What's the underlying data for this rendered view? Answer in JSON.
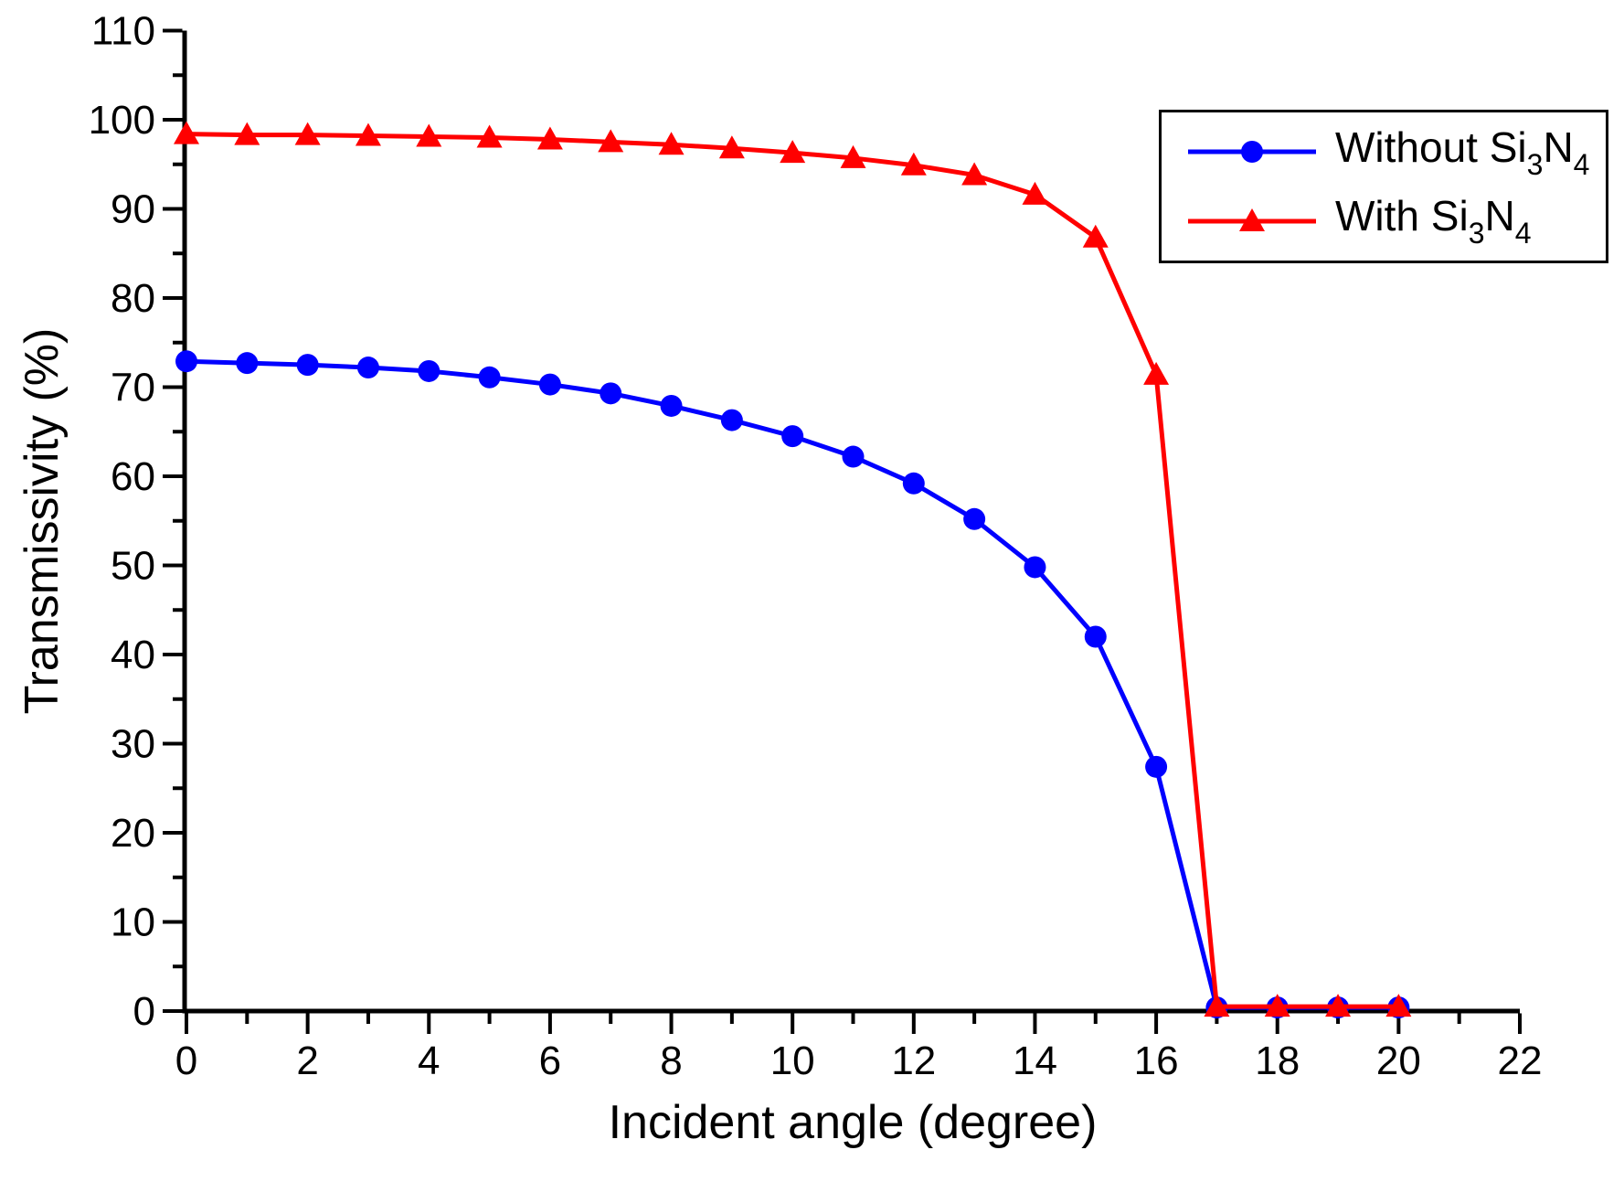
{
  "figure": {
    "background": "#ffffff"
  },
  "chart_data": {
    "type": "line",
    "title": "",
    "xlabel": "Incident angle (degree)",
    "ylabel": "Transmissivity (%)",
    "xlim": [
      0,
      22
    ],
    "ylim": [
      0,
      110
    ],
    "x_major_tick_step": 2,
    "x_minor_tick_step": 1,
    "y_major_tick_step": 10,
    "y_minor_tick_step": 5,
    "grid": false,
    "legend_position": "top-right",
    "axis_color": "#000000",
    "x": [
      0,
      1,
      2,
      3,
      4,
      5,
      6,
      7,
      8,
      9,
      10,
      11,
      12,
      13,
      14,
      15,
      16,
      17,
      18,
      19,
      20
    ],
    "series": [
      {
        "name": "Without Si3N4",
        "color": "#0000ff",
        "marker": "circle",
        "values": [
          72.9,
          72.7,
          72.5,
          72.2,
          71.8,
          71.1,
          70.3,
          69.3,
          67.9,
          66.3,
          64.5,
          62.2,
          59.2,
          55.2,
          49.8,
          42.0,
          27.4,
          0.4,
          0.4,
          0.4,
          0.4
        ]
      },
      {
        "name": "With Si3N4",
        "color": "#ff0000",
        "marker": "triangle",
        "values": [
          98.4,
          98.3,
          98.3,
          98.2,
          98.1,
          98.0,
          97.8,
          97.5,
          97.2,
          96.8,
          96.3,
          95.7,
          94.9,
          93.8,
          91.6,
          86.8,
          71.4,
          0.5,
          0.5,
          0.5,
          0.5
        ]
      }
    ]
  },
  "legend": {
    "entries": [
      {
        "pre": "Without Si",
        "sub1": "3",
        "mid": "N",
        "sub2": "4"
      },
      {
        "pre": "With Si",
        "sub1": "3",
        "mid": "N",
        "sub2": "4"
      }
    ]
  }
}
